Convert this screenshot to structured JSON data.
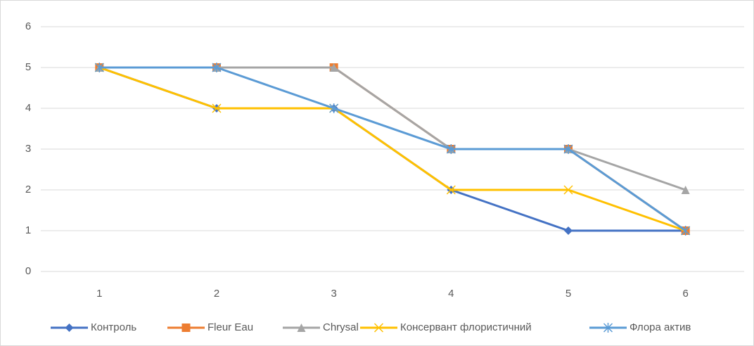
{
  "chart_data": {
    "type": "line",
    "categories": [
      "1",
      "2",
      "3",
      "4",
      "5",
      "6"
    ],
    "series": [
      {
        "name": "Контроль",
        "color": "#4472c4",
        "marker": "diamond",
        "values": [
          5,
          4,
          4,
          2,
          1,
          1
        ]
      },
      {
        "name": "Fleur Eau",
        "color": "#ed7d31",
        "marker": "square",
        "values": [
          5,
          5,
          5,
          3,
          3,
          1
        ]
      },
      {
        "name": "Chrysal",
        "color": "#a5a5a5",
        "marker": "triangle",
        "values": [
          5,
          5,
          5,
          3,
          3,
          2
        ]
      },
      {
        "name": "Консервант флористичний",
        "color": "#ffc000",
        "marker": "x",
        "values": [
          5,
          4,
          4,
          2,
          2,
          1
        ]
      },
      {
        "name": "Флора актив",
        "color": "#5b9bd5",
        "marker": "star",
        "values": [
          5,
          5,
          4,
          3,
          3,
          1
        ]
      }
    ],
    "ylim": [
      0,
      6
    ],
    "yticks": [
      0,
      1,
      2,
      3,
      4,
      5,
      6
    ],
    "grid": true,
    "legend": "bottom"
  }
}
